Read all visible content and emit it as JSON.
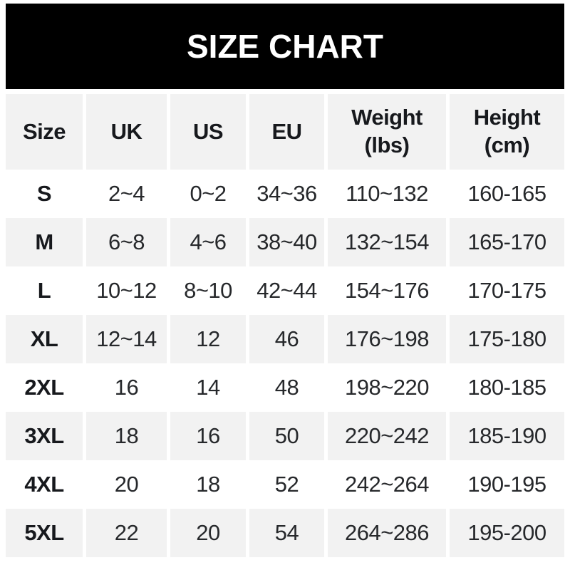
{
  "banner": {
    "title": "SIZE CHART"
  },
  "colors": {
    "banner_bg": "#000000",
    "banner_text": "#ffffff",
    "row_alt_bg": "#f2f2f2",
    "row_bg": "#ffffff",
    "header_text": "#17191d",
    "body_text": "#26282b"
  },
  "table": {
    "columns": [
      {
        "label": "Size"
      },
      {
        "label": "UK"
      },
      {
        "label": "US"
      },
      {
        "label": "EU"
      },
      {
        "label": "Weight",
        "sub": "(lbs)"
      },
      {
        "label": "Height",
        "sub": "(cm)"
      }
    ],
    "rows": [
      {
        "size": "S",
        "uk": "2~4",
        "us": "0~2",
        "eu": "34~36",
        "weight": "110~132",
        "height": "160-165"
      },
      {
        "size": "M",
        "uk": "6~8",
        "us": "4~6",
        "eu": "38~40",
        "weight": "132~154",
        "height": "165-170"
      },
      {
        "size": "L",
        "uk": "10~12",
        "us": "8~10",
        "eu": "42~44",
        "weight": "154~176",
        "height": "170-175"
      },
      {
        "size": "XL",
        "uk": "12~14",
        "us": "12",
        "eu": "46",
        "weight": "176~198",
        "height": "175-180"
      },
      {
        "size": "2XL",
        "uk": "16",
        "us": "14",
        "eu": "48",
        "weight": "198~220",
        "height": "180-185"
      },
      {
        "size": "3XL",
        "uk": "18",
        "us": "16",
        "eu": "50",
        "weight": "220~242",
        "height": "185-190"
      },
      {
        "size": "4XL",
        "uk": "20",
        "us": "18",
        "eu": "52",
        "weight": "242~264",
        "height": "190-195"
      },
      {
        "size": "5XL",
        "uk": "22",
        "us": "20",
        "eu": "54",
        "weight": "264~286",
        "height": "195-200"
      }
    ]
  },
  "chart_data": {
    "type": "table",
    "title": "SIZE CHART",
    "columns": [
      "Size",
      "UK",
      "US",
      "EU",
      "Weight (lbs)",
      "Height (cm)"
    ],
    "rows": [
      [
        "S",
        "2~4",
        "0~2",
        "34~36",
        "110~132",
        "160-165"
      ],
      [
        "M",
        "6~8",
        "4~6",
        "38~40",
        "132~154",
        "165-170"
      ],
      [
        "L",
        "10~12",
        "8~10",
        "42~44",
        "154~176",
        "170-175"
      ],
      [
        "XL",
        "12~14",
        "12",
        "46",
        "176~198",
        "175-180"
      ],
      [
        "2XL",
        "16",
        "14",
        "48",
        "198~220",
        "180-185"
      ],
      [
        "3XL",
        "18",
        "16",
        "50",
        "220~242",
        "185-190"
      ],
      [
        "4XL",
        "20",
        "18",
        "52",
        "242~264",
        "190-195"
      ],
      [
        "5XL",
        "22",
        "20",
        "54",
        "264~286",
        "195-200"
      ]
    ],
    "layout": {
      "header_banner": "black bar, white bold centered title",
      "row_striping": "header gray, then data rows alternate white/gray starting white",
      "column_separators": "5px white gaps between columns"
    }
  }
}
